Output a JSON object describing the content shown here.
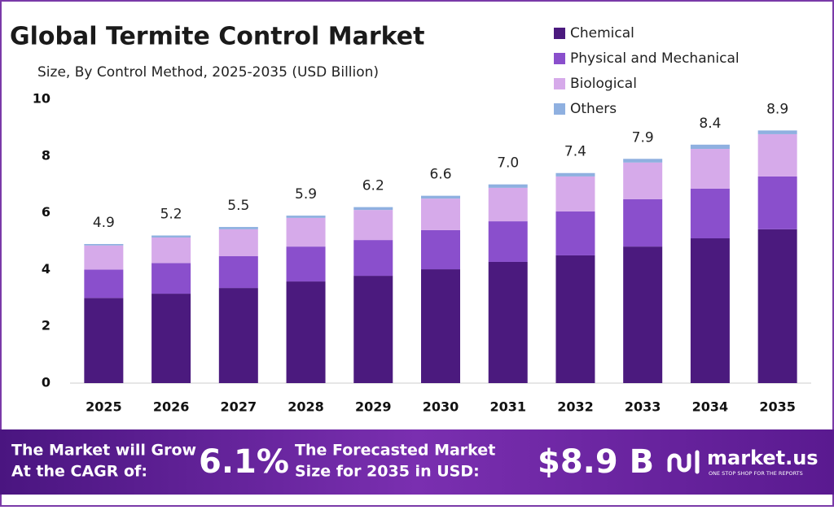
{
  "chart_data": {
    "type": "stacked-bar",
    "title": "Global Termite Control Market",
    "subtitle": "Size, By Control Method, 2025-2035 (USD Billion)",
    "categories": [
      "2025",
      "2026",
      "2027",
      "2028",
      "2029",
      "2030",
      "2031",
      "2032",
      "2033",
      "2034",
      "2035"
    ],
    "series": [
      {
        "name": "Chemical",
        "color": "#4b1a7e",
        "values": [
          3.0,
          3.15,
          3.35,
          3.58,
          3.78,
          4.01,
          4.27,
          4.5,
          4.81,
          5.1,
          5.42
        ]
      },
      {
        "name": "Physical and Mechanical",
        "color": "#8a4fcc",
        "values": [
          1.0,
          1.08,
          1.12,
          1.23,
          1.26,
          1.38,
          1.43,
          1.55,
          1.67,
          1.75,
          1.86
        ]
      },
      {
        "name": "Biological",
        "color": "#d6aaea",
        "values": [
          0.85,
          0.9,
          0.95,
          1.01,
          1.06,
          1.11,
          1.18,
          1.23,
          1.29,
          1.4,
          1.49
        ]
      },
      {
        "name": "Others",
        "color": "#8fb0e0",
        "values": [
          0.05,
          0.07,
          0.08,
          0.08,
          0.1,
          0.1,
          0.12,
          0.12,
          0.13,
          0.15,
          0.13
        ]
      }
    ],
    "totals": [
      4.9,
      5.2,
      5.5,
      5.9,
      6.2,
      6.6,
      7.0,
      7.4,
      7.9,
      8.4,
      8.9
    ],
    "total_labels": [
      "4.9",
      "5.2",
      "5.5",
      "5.9",
      "6.2",
      "6.6",
      "7.0",
      "7.4",
      "7.9",
      "8.4",
      "8.9"
    ],
    "ylim": [
      0,
      10
    ],
    "yticks": [
      0,
      2,
      4,
      6,
      8,
      10
    ],
    "grid": false
  },
  "footer": {
    "cagr_text_1": "The Market will Grow",
    "cagr_text_2": "At the CAGR of:",
    "cagr": "6.1%",
    "size_text_1": "The Forecasted Market",
    "size_text_2": "Size for 2035 in USD:",
    "size": "$8.9 B",
    "logo": "market.us",
    "tagline": "ONE STOP SHOP FOR THE REPORTS"
  }
}
